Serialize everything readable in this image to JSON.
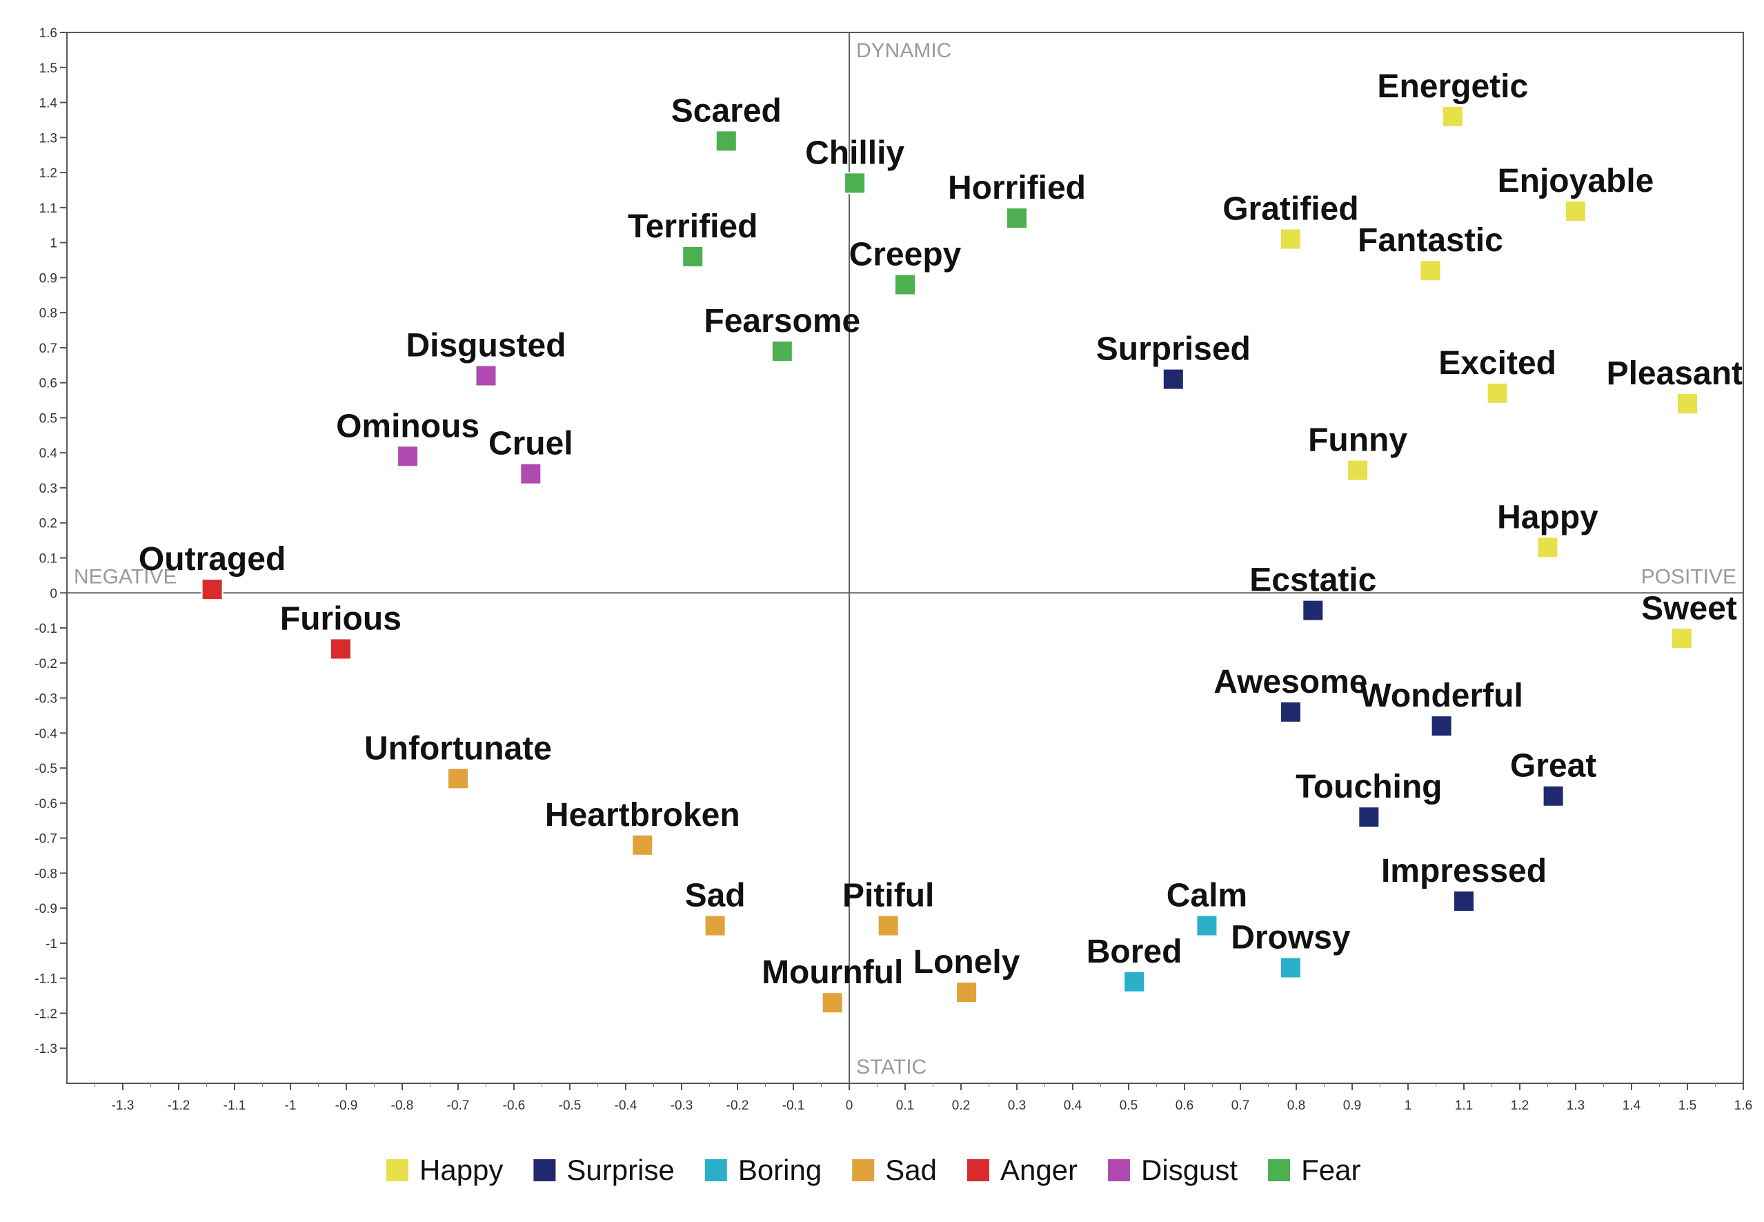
{
  "chart_data": {
    "type": "scatter",
    "title": "",
    "xlabel": "",
    "ylabel": "",
    "xlim": [
      -1.4,
      1.6
    ],
    "ylim": [
      -1.4,
      1.6
    ],
    "xticks": [
      "-1.3",
      "-1.2",
      "-1.1",
      "-1",
      "-0.9",
      "-0.8",
      "-0.7",
      "-0.6",
      "-0.5",
      "-0.4",
      "-0.3",
      "-0.2",
      "-0.1",
      "0",
      "0.1",
      "0.2",
      "0.3",
      "0.4",
      "0.5",
      "0.6",
      "0.7",
      "0.8",
      "0.9",
      "1",
      "1.1",
      "1.2",
      "1.3",
      "1.4",
      "1.5",
      "1.6"
    ],
    "yticks": [
      "1.6",
      "1.5",
      "1.4",
      "1.3",
      "1.2",
      "1.1",
      "1",
      "0.9",
      "0.8",
      "0.7",
      "0.6",
      "0.5",
      "0.4",
      "0.3",
      "0.2",
      "0.1",
      "0",
      "-0.1",
      "-0.2",
      "-0.3",
      "-0.4",
      "-0.5",
      "-0.6",
      "-0.7",
      "-0.8",
      "-0.9",
      "-1",
      "-1.1",
      "-1.2",
      "-1.3"
    ],
    "quadrant_labels": {
      "top": "DYNAMIC",
      "bottom": "STATIC",
      "left": "NEGATIVE",
      "right": "POSITIVE"
    },
    "legend_position": "bottom",
    "grid": false,
    "series": [
      {
        "name": "Happy",
        "color": "#e6e04a",
        "points": [
          {
            "label": "Energetic",
            "x": 1.08,
            "y": 1.36
          },
          {
            "label": "Enjoyable",
            "x": 1.3,
            "y": 1.09
          },
          {
            "label": "Gratified",
            "x": 0.79,
            "y": 1.01
          },
          {
            "label": "Fantastic",
            "x": 1.04,
            "y": 0.92
          },
          {
            "label": "Excited",
            "x": 1.16,
            "y": 0.57
          },
          {
            "label": "Pleasant",
            "x": 1.5,
            "y": 0.54
          },
          {
            "label": "Funny",
            "x": 0.91,
            "y": 0.35
          },
          {
            "label": "Happy",
            "x": 1.25,
            "y": 0.13
          },
          {
            "label": "Sweet",
            "x": 1.49,
            "y": -0.13
          }
        ]
      },
      {
        "name": "Surprise",
        "color": "#1f2a6e",
        "points": [
          {
            "label": "Surprised",
            "x": 0.58,
            "y": 0.61
          },
          {
            "label": "Ecstatic",
            "x": 0.83,
            "y": -0.05
          },
          {
            "label": "Awesome",
            "x": 0.79,
            "y": -0.34
          },
          {
            "label": "Wonderful",
            "x": 1.06,
            "y": -0.38
          },
          {
            "label": "Great",
            "x": 1.26,
            "y": -0.58
          },
          {
            "label": "Touching",
            "x": 0.93,
            "y": -0.64
          },
          {
            "label": "Impressed",
            "x": 1.1,
            "y": -0.88
          }
        ]
      },
      {
        "name": "Boring",
        "color": "#2bb0cc",
        "points": [
          {
            "label": "Calm",
            "x": 0.64,
            "y": -0.95
          },
          {
            "label": "Drowsy",
            "x": 0.79,
            "y": -1.07
          },
          {
            "label": "Bored",
            "x": 0.51,
            "y": -1.11
          }
        ]
      },
      {
        "name": "Sad",
        "color": "#e0a23a",
        "points": [
          {
            "label": "Unfortunate",
            "x": -0.7,
            "y": -0.53
          },
          {
            "label": "Heartbroken",
            "x": -0.37,
            "y": -0.72
          },
          {
            "label": "Sad",
            "x": -0.24,
            "y": -0.95
          },
          {
            "label": "Pitiful",
            "x": 0.07,
            "y": -0.95
          },
          {
            "label": "Mournful",
            "x": -0.03,
            "y": -1.17
          },
          {
            "label": "Lonely",
            "x": 0.21,
            "y": -1.14
          }
        ]
      },
      {
        "name": "Anger",
        "color": "#d92b2b",
        "points": [
          {
            "label": "Outraged",
            "x": -1.14,
            "y": 0.01
          },
          {
            "label": "Furious",
            "x": -0.91,
            "y": -0.16
          }
        ]
      },
      {
        "name": "Disgust",
        "color": "#b04ab0",
        "points": [
          {
            "label": "Disgusted",
            "x": -0.65,
            "y": 0.62
          },
          {
            "label": "Ominous",
            "x": -0.79,
            "y": 0.39
          },
          {
            "label": "Cruel",
            "x": -0.57,
            "y": 0.34
          }
        ]
      },
      {
        "name": "Fear",
        "color": "#4caf50",
        "points": [
          {
            "label": "Scared",
            "x": -0.22,
            "y": 1.29
          },
          {
            "label": "Chilliy",
            "x": 0.01,
            "y": 1.17
          },
          {
            "label": "Horrified",
            "x": 0.3,
            "y": 1.07
          },
          {
            "label": "Terrified",
            "x": -0.28,
            "y": 0.96
          },
          {
            "label": "Creepy",
            "x": 0.1,
            "y": 0.88
          },
          {
            "label": "Fearsome",
            "x": -0.12,
            "y": 0.69
          }
        ]
      }
    ]
  }
}
